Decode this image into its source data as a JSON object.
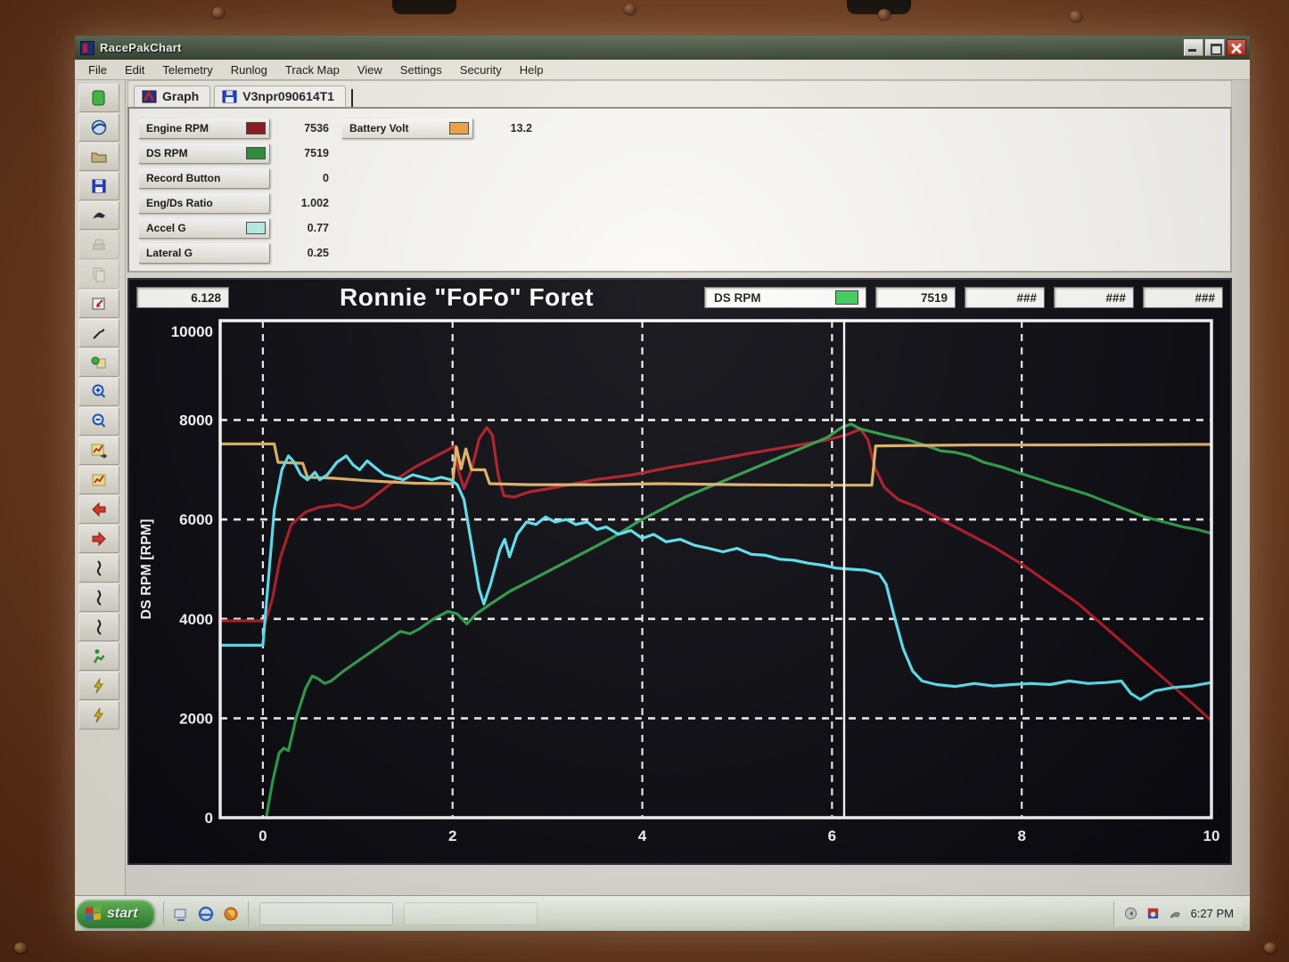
{
  "window": {
    "title": "RacePakChart"
  },
  "menu_items": [
    "File",
    "Edit",
    "Telemetry",
    "Runlog",
    "Track Map",
    "View",
    "Settings",
    "Security",
    "Help"
  ],
  "tabs": [
    {
      "label": "Graph",
      "icon": "racepak-logo-icon"
    },
    {
      "label": "V3npr090614T1",
      "icon": "floppy-icon"
    }
  ],
  "toolbar_items": [
    {
      "name": "new",
      "icon": "doc-green",
      "disabled": false
    },
    {
      "name": "telemetry",
      "icon": "globe",
      "disabled": false
    },
    {
      "name": "open",
      "icon": "folder",
      "disabled": false
    },
    {
      "name": "save",
      "icon": "floppy",
      "disabled": false
    },
    {
      "name": "print",
      "icon": "ink-dark",
      "disabled": false
    },
    {
      "name": "print-preview",
      "icon": "printer",
      "disabled": true
    },
    {
      "name": "copy",
      "icon": "pages",
      "disabled": true
    },
    {
      "name": "zoom-box",
      "icon": "zoom-region",
      "disabled": false
    },
    {
      "name": "draw-line",
      "icon": "pen",
      "disabled": false
    },
    {
      "name": "highlight",
      "icon": "marker",
      "disabled": false
    },
    {
      "name": "zoom-in",
      "icon": "zoom-in",
      "disabled": false
    },
    {
      "name": "zoom-out",
      "icon": "zoom-out",
      "disabled": false
    },
    {
      "name": "autoscale",
      "icon": "chart-arrow",
      "disabled": false
    },
    {
      "name": "graph-mode",
      "icon": "chart-yellow",
      "disabled": false
    },
    {
      "name": "pan-left",
      "icon": "arrow-left-red",
      "disabled": false
    },
    {
      "name": "pan-right",
      "icon": "arrow-right-red",
      "disabled": false
    },
    {
      "name": "cursor-1",
      "icon": "squiggle",
      "disabled": false
    },
    {
      "name": "cursor-2",
      "icon": "squiggle",
      "disabled": false
    },
    {
      "name": "cursor-3",
      "icon": "squiggle",
      "disabled": false
    },
    {
      "name": "runner",
      "icon": "runner-green",
      "disabled": false
    },
    {
      "name": "compare-1",
      "icon": "bolt-yellow",
      "disabled": false
    },
    {
      "name": "compare-2",
      "icon": "bolt-yellow",
      "disabled": false
    }
  ],
  "channels_left": [
    {
      "label": "Engine RPM",
      "value": "7536",
      "swatch": "#8e1620"
    },
    {
      "label": "DS RPM",
      "value": "7519",
      "swatch": "#2e8f3e"
    },
    {
      "label": "Record Button",
      "value": "0",
      "swatch": null
    },
    {
      "label": "Eng/Ds Ratio",
      "value": "1.002",
      "swatch": null
    },
    {
      "label": "Accel G",
      "value": "0.77",
      "swatch": "#bdf4ee"
    },
    {
      "label": "Lateral G",
      "value": "0.25",
      "swatch": null
    }
  ],
  "channels_right": [
    {
      "label": "Battery Volt",
      "value": "13.2",
      "swatch": "#f0a43c"
    }
  ],
  "chart_header": {
    "cursor_value": "6.128",
    "selector_label": "DS RPM",
    "selector_color": "#3ecc5e",
    "values": [
      "7519",
      "###",
      "###",
      "###"
    ]
  },
  "chart_data": {
    "type": "line",
    "title": "Ronnie \"FoFo\" Foret",
    "xlabel": "",
    "ylabel": "DS RPM [RPM]",
    "xlim": [
      -0.45,
      10
    ],
    "ylim": [
      0,
      10000
    ],
    "xticks": [
      0,
      2,
      4,
      6,
      8,
      10
    ],
    "yticks": [
      0,
      2000,
      4000,
      6000,
      8000,
      10000
    ],
    "grid": true,
    "legend": "none",
    "cursor_x": 6.128,
    "series": [
      {
        "name": "Engine RPM",
        "color": "#b01a26",
        "points": [
          [
            -0.45,
            3960
          ],
          [
            0.03,
            3960
          ],
          [
            0.1,
            4400
          ],
          [
            0.18,
            5200
          ],
          [
            0.3,
            5900
          ],
          [
            0.45,
            6150
          ],
          [
            0.6,
            6250
          ],
          [
            0.8,
            6300
          ],
          [
            0.95,
            6220
          ],
          [
            1.05,
            6280
          ],
          [
            1.2,
            6500
          ],
          [
            1.4,
            6800
          ],
          [
            1.6,
            7050
          ],
          [
            1.8,
            7250
          ],
          [
            1.95,
            7400
          ],
          [
            2.02,
            7480
          ],
          [
            2.06,
            7000
          ],
          [
            2.12,
            6620
          ],
          [
            2.2,
            7000
          ],
          [
            2.28,
            7620
          ],
          [
            2.36,
            7850
          ],
          [
            2.42,
            7700
          ],
          [
            2.48,
            6900
          ],
          [
            2.54,
            6480
          ],
          [
            2.65,
            6450
          ],
          [
            2.8,
            6550
          ],
          [
            3.1,
            6650
          ],
          [
            3.5,
            6800
          ],
          [
            3.9,
            6900
          ],
          [
            4.3,
            7050
          ],
          [
            4.7,
            7180
          ],
          [
            5.1,
            7320
          ],
          [
            5.5,
            7450
          ],
          [
            5.9,
            7580
          ],
          [
            6.15,
            7700
          ],
          [
            6.3,
            7820
          ],
          [
            6.38,
            7600
          ],
          [
            6.45,
            7050
          ],
          [
            6.55,
            6650
          ],
          [
            6.7,
            6400
          ],
          [
            6.9,
            6250
          ],
          [
            7.1,
            6050
          ],
          [
            7.4,
            5750
          ],
          [
            7.7,
            5450
          ],
          [
            8.0,
            5100
          ],
          [
            8.3,
            4700
          ],
          [
            8.6,
            4300
          ],
          [
            8.9,
            3800
          ],
          [
            9.2,
            3300
          ],
          [
            9.5,
            2800
          ],
          [
            9.8,
            2300
          ],
          [
            10,
            1950
          ]
        ]
      },
      {
        "name": "DS RPM",
        "color": "#2f9e4a",
        "points": [
          [
            0.04,
            50
          ],
          [
            0.1,
            700
          ],
          [
            0.17,
            1300
          ],
          [
            0.22,
            1400
          ],
          [
            0.27,
            1350
          ],
          [
            0.35,
            2000
          ],
          [
            0.45,
            2600
          ],
          [
            0.52,
            2850
          ],
          [
            0.58,
            2800
          ],
          [
            0.65,
            2700
          ],
          [
            0.72,
            2750
          ],
          [
            0.85,
            2950
          ],
          [
            1.0,
            3150
          ],
          [
            1.15,
            3350
          ],
          [
            1.3,
            3550
          ],
          [
            1.45,
            3750
          ],
          [
            1.55,
            3700
          ],
          [
            1.65,
            3800
          ],
          [
            1.8,
            4000
          ],
          [
            1.95,
            4150
          ],
          [
            2.05,
            4100
          ],
          [
            2.15,
            3900
          ],
          [
            2.25,
            4100
          ],
          [
            2.4,
            4300
          ],
          [
            2.6,
            4550
          ],
          [
            2.8,
            4750
          ],
          [
            3.0,
            4950
          ],
          [
            3.2,
            5150
          ],
          [
            3.45,
            5400
          ],
          [
            3.7,
            5650
          ],
          [
            3.95,
            5950
          ],
          [
            4.2,
            6200
          ],
          [
            4.45,
            6450
          ],
          [
            4.7,
            6650
          ],
          [
            4.95,
            6850
          ],
          [
            5.2,
            7050
          ],
          [
            5.45,
            7250
          ],
          [
            5.7,
            7450
          ],
          [
            5.95,
            7650
          ],
          [
            6.1,
            7850
          ],
          [
            6.2,
            7920
          ],
          [
            6.3,
            7820
          ],
          [
            6.45,
            7750
          ],
          [
            6.6,
            7680
          ],
          [
            6.8,
            7600
          ],
          [
            7.0,
            7480
          ],
          [
            7.15,
            7380
          ],
          [
            7.3,
            7350
          ],
          [
            7.45,
            7280
          ],
          [
            7.6,
            7150
          ],
          [
            7.8,
            7050
          ],
          [
            8.0,
            6920
          ],
          [
            8.2,
            6800
          ],
          [
            8.35,
            6700
          ],
          [
            8.5,
            6620
          ],
          [
            8.7,
            6500
          ],
          [
            8.9,
            6350
          ],
          [
            9.1,
            6200
          ],
          [
            9.3,
            6050
          ],
          [
            9.5,
            5950
          ],
          [
            9.7,
            5850
          ],
          [
            9.85,
            5800
          ],
          [
            10,
            5720
          ]
        ]
      },
      {
        "name": "Battery Volt",
        "color": "#e2b467",
        "points": [
          [
            -0.45,
            7520
          ],
          [
            0.12,
            7520
          ],
          [
            0.16,
            7150
          ],
          [
            0.42,
            7130
          ],
          [
            0.47,
            6850
          ],
          [
            0.75,
            6830
          ],
          [
            1.1,
            6780
          ],
          [
            1.6,
            6730
          ],
          [
            2.0,
            6720
          ],
          [
            2.04,
            7460
          ],
          [
            2.09,
            7020
          ],
          [
            2.14,
            7420
          ],
          [
            2.2,
            7000
          ],
          [
            2.34,
            7000
          ],
          [
            2.39,
            6720
          ],
          [
            2.8,
            6700
          ],
          [
            3.5,
            6700
          ],
          [
            4.2,
            6720
          ],
          [
            5.0,
            6700
          ],
          [
            5.8,
            6690
          ],
          [
            6.42,
            6690
          ],
          [
            6.46,
            7480
          ],
          [
            7.5,
            7500
          ],
          [
            8.5,
            7500
          ],
          [
            10,
            7510
          ]
        ]
      },
      {
        "name": "Accel G",
        "color": "#5fe3f2",
        "points": [
          [
            -0.45,
            3470
          ],
          [
            0.0,
            3470
          ],
          [
            0.05,
            4600
          ],
          [
            0.12,
            6200
          ],
          [
            0.2,
            7000
          ],
          [
            0.27,
            7280
          ],
          [
            0.33,
            7150
          ],
          [
            0.4,
            6900
          ],
          [
            0.47,
            6800
          ],
          [
            0.55,
            6950
          ],
          [
            0.6,
            6800
          ],
          [
            0.68,
            6900
          ],
          [
            0.78,
            7150
          ],
          [
            0.88,
            7280
          ],
          [
            0.95,
            7100
          ],
          [
            1.02,
            7000
          ],
          [
            1.1,
            7180
          ],
          [
            1.18,
            7050
          ],
          [
            1.28,
            6900
          ],
          [
            1.38,
            6850
          ],
          [
            1.48,
            6800
          ],
          [
            1.58,
            6900
          ],
          [
            1.68,
            6850
          ],
          [
            1.78,
            6800
          ],
          [
            1.88,
            6850
          ],
          [
            1.98,
            6800
          ],
          [
            2.05,
            6700
          ],
          [
            2.12,
            6400
          ],
          [
            2.2,
            5500
          ],
          [
            2.28,
            4600
          ],
          [
            2.33,
            4300
          ],
          [
            2.4,
            4700
          ],
          [
            2.5,
            5400
          ],
          [
            2.55,
            5600
          ],
          [
            2.6,
            5250
          ],
          [
            2.68,
            5700
          ],
          [
            2.78,
            5950
          ],
          [
            2.88,
            5900
          ],
          [
            2.98,
            6050
          ],
          [
            3.08,
            5950
          ],
          [
            3.2,
            6000
          ],
          [
            3.3,
            5900
          ],
          [
            3.42,
            5950
          ],
          [
            3.52,
            5800
          ],
          [
            3.62,
            5850
          ],
          [
            3.75,
            5700
          ],
          [
            3.88,
            5780
          ],
          [
            4.0,
            5620
          ],
          [
            4.12,
            5700
          ],
          [
            4.25,
            5550
          ],
          [
            4.4,
            5600
          ],
          [
            4.55,
            5480
          ],
          [
            4.7,
            5420
          ],
          [
            4.85,
            5350
          ],
          [
            5.0,
            5420
          ],
          [
            5.15,
            5300
          ],
          [
            5.3,
            5280
          ],
          [
            5.45,
            5200
          ],
          [
            5.6,
            5180
          ],
          [
            5.75,
            5120
          ],
          [
            5.9,
            5080
          ],
          [
            6.05,
            5020
          ],
          [
            6.2,
            5000
          ],
          [
            6.35,
            4980
          ],
          [
            6.5,
            4900
          ],
          [
            6.57,
            4700
          ],
          [
            6.65,
            4100
          ],
          [
            6.75,
            3400
          ],
          [
            6.85,
            2950
          ],
          [
            6.95,
            2750
          ],
          [
            7.1,
            2680
          ],
          [
            7.3,
            2640
          ],
          [
            7.5,
            2700
          ],
          [
            7.7,
            2650
          ],
          [
            7.9,
            2680
          ],
          [
            8.1,
            2700
          ],
          [
            8.3,
            2680
          ],
          [
            8.5,
            2750
          ],
          [
            8.7,
            2700
          ],
          [
            8.9,
            2720
          ],
          [
            9.05,
            2750
          ],
          [
            9.15,
            2500
          ],
          [
            9.25,
            2380
          ],
          [
            9.4,
            2550
          ],
          [
            9.6,
            2620
          ],
          [
            9.8,
            2650
          ],
          [
            10,
            2720
          ]
        ]
      }
    ]
  },
  "taskbar": {
    "start_label": "start",
    "quick_launch": [
      "show-desktop-icon",
      "internet-explorer-icon",
      "firefox-icon"
    ],
    "tray_icons": [
      "volume-icon",
      "display-settings-icon",
      "removable-device-icon"
    ],
    "clock": "6:27 PM"
  }
}
